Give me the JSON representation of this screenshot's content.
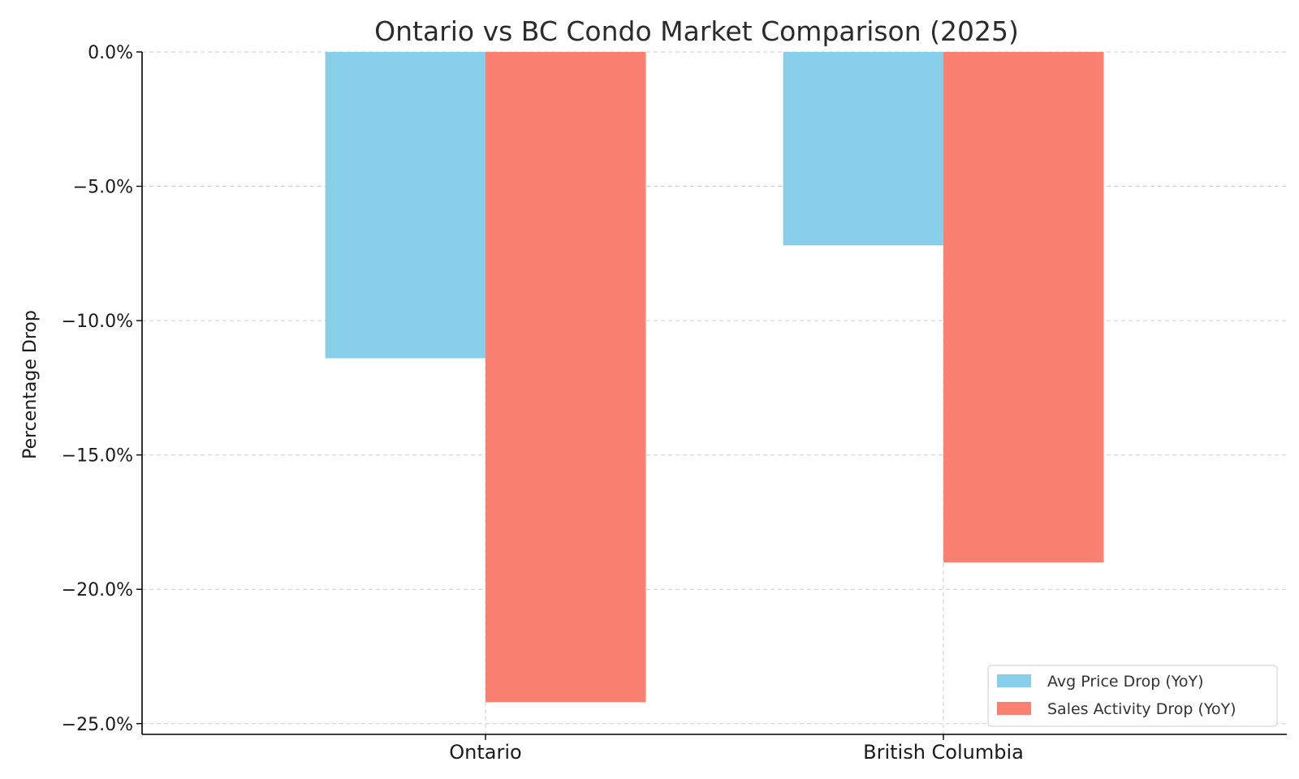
{
  "chart_data": {
    "type": "bar",
    "title": "Ontario vs BC Condo Market Comparison (2025)",
    "ylabel": "Percentage Drop",
    "xlabel": "",
    "categories": [
      "Ontario",
      "British Columbia"
    ],
    "series": [
      {
        "name": "Avg Price Drop (YoY)",
        "values": [
          -11.4,
          -7.2
        ],
        "color": "#87CEEB"
      },
      {
        "name": "Sales Activity Drop (YoY)",
        "values": [
          -24.2,
          -19.0
        ],
        "color": "#FA8072"
      }
    ],
    "ylim": [
      -25.4,
      0
    ],
    "yticks": [
      0,
      -5,
      -10,
      -15,
      -20,
      -25
    ],
    "ytick_labels": [
      "0.0%",
      "−5.0%",
      "−10.0%",
      "−15.0%",
      "−20.0%",
      "−25.0%"
    ],
    "grid": true,
    "legend_position": "bottom-right"
  }
}
